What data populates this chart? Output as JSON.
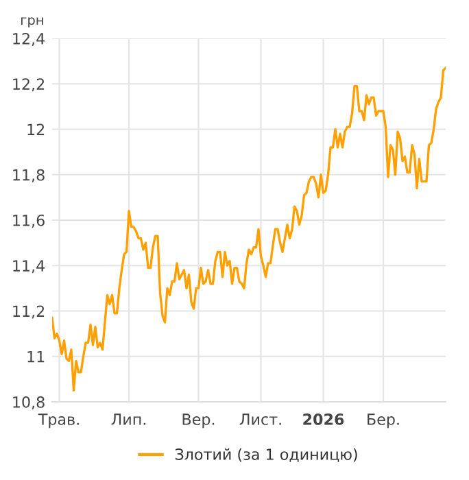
{
  "chart_data": {
    "type": "line",
    "ylabel": "грн",
    "categories": [
      null,
      null,
      null,
      "Трав.",
      null,
      null,
      null,
      null,
      null,
      null,
      null,
      null,
      null,
      null,
      null,
      null,
      null,
      null,
      null,
      null,
      null,
      null,
      null,
      null,
      null,
      null,
      null,
      null,
      null,
      null,
      null,
      null,
      "Лип.",
      null,
      null,
      null,
      null,
      null,
      null,
      null,
      null,
      null,
      null,
      null,
      null,
      null,
      null,
      null,
      null,
      null,
      null,
      null,
      null,
      null,
      null,
      null,
      null,
      null,
      null,
      null,
      null,
      "Вер.",
      null,
      null,
      null,
      null,
      null,
      null,
      null,
      null,
      null,
      null,
      null,
      null,
      null,
      null,
      null,
      null,
      null,
      null,
      null,
      null,
      null,
      null,
      null,
      null,
      null,
      "Лист.",
      null,
      null,
      null,
      null,
      null,
      null,
      null,
      null,
      null,
      null,
      null,
      null,
      null,
      null,
      null,
      null,
      null,
      null,
      null,
      null,
      null,
      null,
      null,
      null,
      null,
      "2026",
      null,
      null,
      null,
      null,
      null,
      null,
      null,
      null,
      null,
      null,
      null,
      null,
      null,
      null,
      null,
      null,
      null,
      null,
      null,
      null,
      null,
      null,
      null,
      null,
      "Бер.",
      null,
      null,
      null,
      null,
      null,
      null,
      null,
      null,
      null,
      null,
      null,
      null,
      null,
      null,
      null,
      null,
      null,
      null,
      null,
      null,
      null,
      null,
      null,
      null,
      null,
      null
    ],
    "ylim": [
      10.8,
      12.4
    ],
    "yticks": [
      {
        "value": 10.8,
        "label": "10,8"
      },
      11,
      {
        "value": 11.2,
        "label": "11,2"
      },
      {
        "value": 11.4,
        "label": "11,4"
      },
      {
        "value": 11.6,
        "label": "11,6"
      },
      {
        "value": 11.8,
        "label": "11,8"
      },
      12,
      {
        "value": 12.2,
        "label": "12,2"
      },
      {
        "value": 12.4,
        "label": "12,4"
      }
    ],
    "grid": true,
    "legend": "bottom",
    "marker": "none",
    "line_style": "solid",
    "series": [
      {
        "name": "Злотий (за 1 одиницю)",
        "color": "#ffa000",
        "values": [
          11.17,
          11.08,
          11.1,
          11.07,
          11.01,
          11.07,
          10.99,
          10.98,
          11.03,
          10.85,
          10.98,
          10.93,
          10.93,
          11.0,
          11.06,
          11.06,
          11.14,
          11.05,
          11.13,
          11.04,
          11.06,
          11.03,
          11.15,
          11.27,
          11.23,
          11.27,
          11.19,
          11.19,
          11.3,
          11.38,
          11.45,
          11.46,
          11.64,
          11.57,
          11.57,
          11.55,
          11.52,
          11.52,
          11.47,
          11.5,
          11.39,
          11.39,
          11.48,
          11.53,
          11.53,
          11.28,
          11.18,
          11.15,
          11.3,
          11.27,
          11.33,
          11.33,
          11.41,
          11.34,
          11.36,
          11.38,
          11.3,
          11.36,
          11.24,
          11.21,
          11.3,
          11.3,
          11.39,
          11.32,
          11.33,
          11.38,
          11.32,
          11.32,
          11.42,
          11.46,
          11.46,
          11.35,
          11.46,
          11.4,
          11.42,
          11.32,
          11.39,
          11.39,
          11.33,
          11.32,
          11.3,
          11.41,
          11.47,
          11.45,
          11.48,
          11.48,
          11.56,
          11.44,
          11.4,
          11.35,
          11.41,
          11.41,
          11.49,
          11.56,
          11.56,
          11.5,
          11.46,
          11.52,
          11.58,
          11.52,
          11.56,
          11.66,
          11.64,
          11.58,
          11.62,
          11.71,
          11.72,
          11.77,
          11.79,
          11.79,
          11.76,
          11.7,
          11.8,
          11.72,
          11.73,
          11.8,
          11.92,
          11.92,
          12.0,
          11.92,
          11.98,
          11.92,
          11.99,
          12.01,
          12.01,
          12.07,
          12.19,
          12.19,
          12.08,
          12.08,
          12.04,
          12.15,
          12.11,
          12.14,
          12.14,
          12.06,
          12.08,
          12.08,
          12.08,
          12.01,
          11.79,
          11.93,
          11.91,
          11.8,
          11.99,
          11.96,
          11.86,
          11.88,
          11.81,
          11.81,
          11.93,
          11.89,
          11.74,
          11.87,
          11.77,
          11.77,
          11.77,
          11.93,
          11.94,
          12.0,
          12.09,
          12.12,
          12.14,
          12.26,
          12.27
        ]
      }
    ]
  }
}
